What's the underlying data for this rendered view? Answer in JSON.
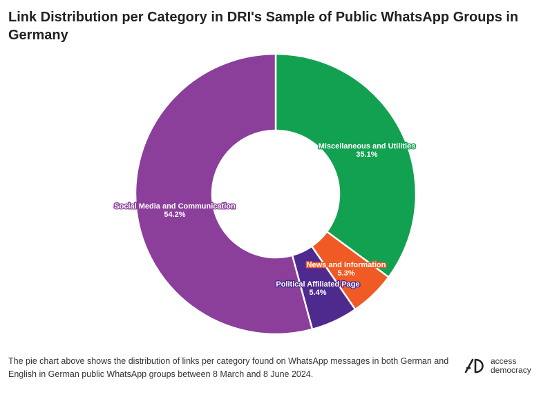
{
  "title": "Link Distribution per Category in DRI's Sample of Public WhatsApp Groups in Germany",
  "footer": {
    "description": "The pie chart above shows the distribution of links per category found on WhatsApp messages in both German and English in German public WhatsApp groups between 8 March and 8 June 2024."
  },
  "logo": {
    "line1": "access",
    "line2": "democracy",
    "icon": "access-democracy-logo"
  },
  "chart_data": {
    "type": "pie",
    "donut": true,
    "slices": [
      {
        "label": "Miscellaneous and Utilities",
        "percent_label": "35.1%",
        "value": 35.1,
        "color": "#12a150"
      },
      {
        "label": "News and Information",
        "percent_label": "5.3%",
        "value": 5.3,
        "color": "#f05a24"
      },
      {
        "label": "Political Affiliated Page",
        "percent_label": "5.4%",
        "value": 5.4,
        "color": "#4e2a8e"
      },
      {
        "label": "Social Media and Communication",
        "percent_label": "54.2%",
        "value": 54.2,
        "color": "#8b3f9b"
      }
    ]
  }
}
